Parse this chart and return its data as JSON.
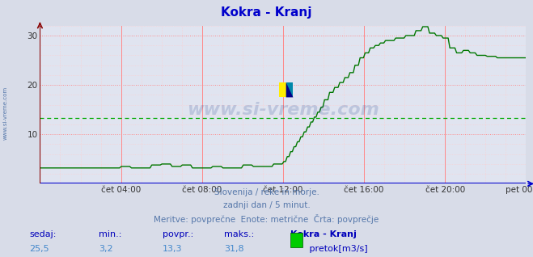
{
  "title": "Kokra - Kranj",
  "title_color": "#0000cc",
  "bg_color": "#d8dce8",
  "plot_bg_color": "#e0e4f0",
  "grid_color_major": "#ff8888",
  "grid_color_minor": "#ffcccc",
  "x_axis_color": "#0000cc",
  "y_axis_color": "#880000",
  "line_color": "#007700",
  "avg_line_color": "#00aa00",
  "avg_value": 13.3,
  "ylim_min": 0,
  "ylim_max": 32,
  "x_labels": [
    "čet 04:00",
    "čet 08:00",
    "čet 12:00",
    "čet 16:00",
    "čet 20:00",
    "pet 00:00"
  ],
  "x_tick_pos": [
    4,
    8,
    12,
    16,
    20,
    24
  ],
  "y_ticks": [
    10,
    20,
    30
  ],
  "subtitle1": "Slovenija / reke in morje.",
  "subtitle2": "zadnji dan / 5 minut.",
  "subtitle3": "Meritve: povprečne  Enote: metrične  Črta: povprečje",
  "subtitle_color": "#5577aa",
  "footer_label_color": "#0000bb",
  "footer_value_color": "#4488cc",
  "sedaj_label": "sedaj:",
  "min_label": "min.:",
  "povpr_label": "povpr.:",
  "maks_label": "maks.:",
  "station_label": "Kokra - Kranj",
  "unit_label": " pretok[m3/s]",
  "sedaj_val": "25,5",
  "min_val": "3,2",
  "povpr_val": "13,3",
  "maks_val": "31,8",
  "watermark": "www.si-vreme.com",
  "watermark_color": "#1a3a8a",
  "watermark_alpha": 0.18,
  "left_label": "www.si-vreme.com",
  "left_label_color": "#5577aa",
  "legend_color": "#00cc00"
}
